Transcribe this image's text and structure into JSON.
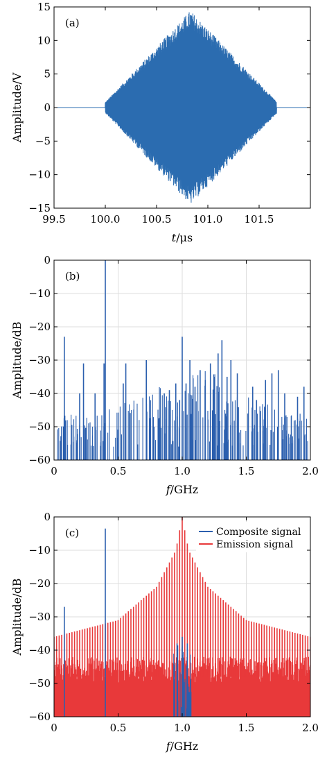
{
  "chart_data": [
    {
      "id": "a",
      "type": "line",
      "panel_label": "(a)",
      "xlabel_italic": "t",
      "xlabel_rest": "/μs",
      "ylabel": "Amplitude/V",
      "xlim": [
        99.5,
        102.0
      ],
      "ylim": [
        -15,
        15
      ],
      "xticks": [
        99.5,
        100.0,
        100.5,
        101.0,
        101.5
      ],
      "xtick_labels": [
        "99.5",
        "100.0",
        "100.5",
        "101.0",
        "101.5"
      ],
      "yticks": [
        15,
        10,
        5,
        0,
        -5,
        -10,
        -15
      ],
      "ytick_labels": [
        "15",
        "10",
        "5",
        "0",
        "−5",
        "−10",
        "−15"
      ],
      "grid": false,
      "color": "#2b6cb0",
      "envelope": {
        "x": [
          99.5,
          100.0,
          100.83,
          101.67,
          102.0
        ],
        "y": [
          0.3,
          0.8,
          14.5,
          0.9,
          0.3
        ]
      }
    },
    {
      "id": "b",
      "type": "line",
      "panel_label": "(b)",
      "xlabel_italic": "f",
      "xlabel_rest": "/GHz",
      "ylabel": "Amplitude/dB",
      "xlim": [
        0,
        2.0
      ],
      "ylim": [
        -60,
        0
      ],
      "xticks": [
        0,
        0.5,
        1.0,
        1.5,
        2.0
      ],
      "xtick_labels": [
        "0",
        "0.5",
        "1.0",
        "1.5",
        "2.0"
      ],
      "yticks": [
        0,
        -10,
        -20,
        -30,
        -40,
        -50,
        -60
      ],
      "ytick_labels": [
        "0",
        "−10",
        "−20",
        "−30",
        "−40",
        "−50",
        "−60"
      ],
      "grid": true,
      "color": "#2b5fae",
      "peaks": {
        "x": [
          0.06,
          0.08,
          0.2,
          0.23,
          0.32,
          0.39,
          0.4,
          0.54,
          0.56,
          0.72,
          0.78,
          0.86,
          0.9,
          0.95,
          0.98,
          1.0,
          1.03,
          1.06,
          1.1,
          1.14,
          1.18,
          1.22,
          1.25,
          1.28,
          1.31,
          1.35,
          1.38,
          1.43,
          1.55,
          1.58,
          1.65,
          1.7,
          1.75,
          1.8,
          1.9,
          1.95
        ],
        "y": [
          -50,
          -23,
          -40,
          -31,
          -40,
          -31,
          0,
          -37,
          -31,
          -30,
          -50,
          -40,
          -39,
          -37,
          -42,
          -23,
          -37,
          -30,
          -38,
          -33,
          -36,
          -31,
          -35,
          -28,
          -24,
          -35,
          -30,
          -34,
          -38,
          -42,
          -36,
          -34,
          -33,
          -40,
          -41,
          -38
        ]
      }
    },
    {
      "id": "c",
      "type": "line",
      "panel_label": "(c)",
      "xlabel_italic": "f",
      "xlabel_rest": "/GHz",
      "ylabel": "Amplitude/dB",
      "xlim": [
        0,
        2.0
      ],
      "ylim": [
        -60,
        0
      ],
      "xticks": [
        0,
        0.5,
        1.0,
        1.5,
        2.0
      ],
      "xtick_labels": [
        "0",
        "0.5",
        "1.0",
        "1.5",
        "2.0"
      ],
      "yticks": [
        0,
        -10,
        -20,
        -30,
        -40,
        -50,
        -60
      ],
      "ytick_labels": [
        "0",
        "−10",
        "−20",
        "−30",
        "−40",
        "−50",
        "−60"
      ],
      "grid": true,
      "legend_position": "top-right",
      "series": [
        {
          "name": "Composite signal",
          "color": "#2b5fae",
          "peaks": {
            "x": [
              0.08,
              0.4,
              0.96,
              1.0,
              1.04
            ],
            "y": [
              -27,
              -3.5,
              -38,
              -36,
              -38
            ]
          }
        },
        {
          "name": "Emission signal",
          "color": "#e8393a",
          "envelope": {
            "x": [
              0,
              0.5,
              0.8,
              0.95,
              1.0,
              1.05,
              1.2,
              1.5,
              2.0
            ],
            "y": [
              -36,
              -31,
              -21,
              -10,
              0,
              -10,
              -21,
              -31,
              -36
            ]
          },
          "noise_floor": [
            -45,
            -50
          ]
        }
      ]
    }
  ]
}
